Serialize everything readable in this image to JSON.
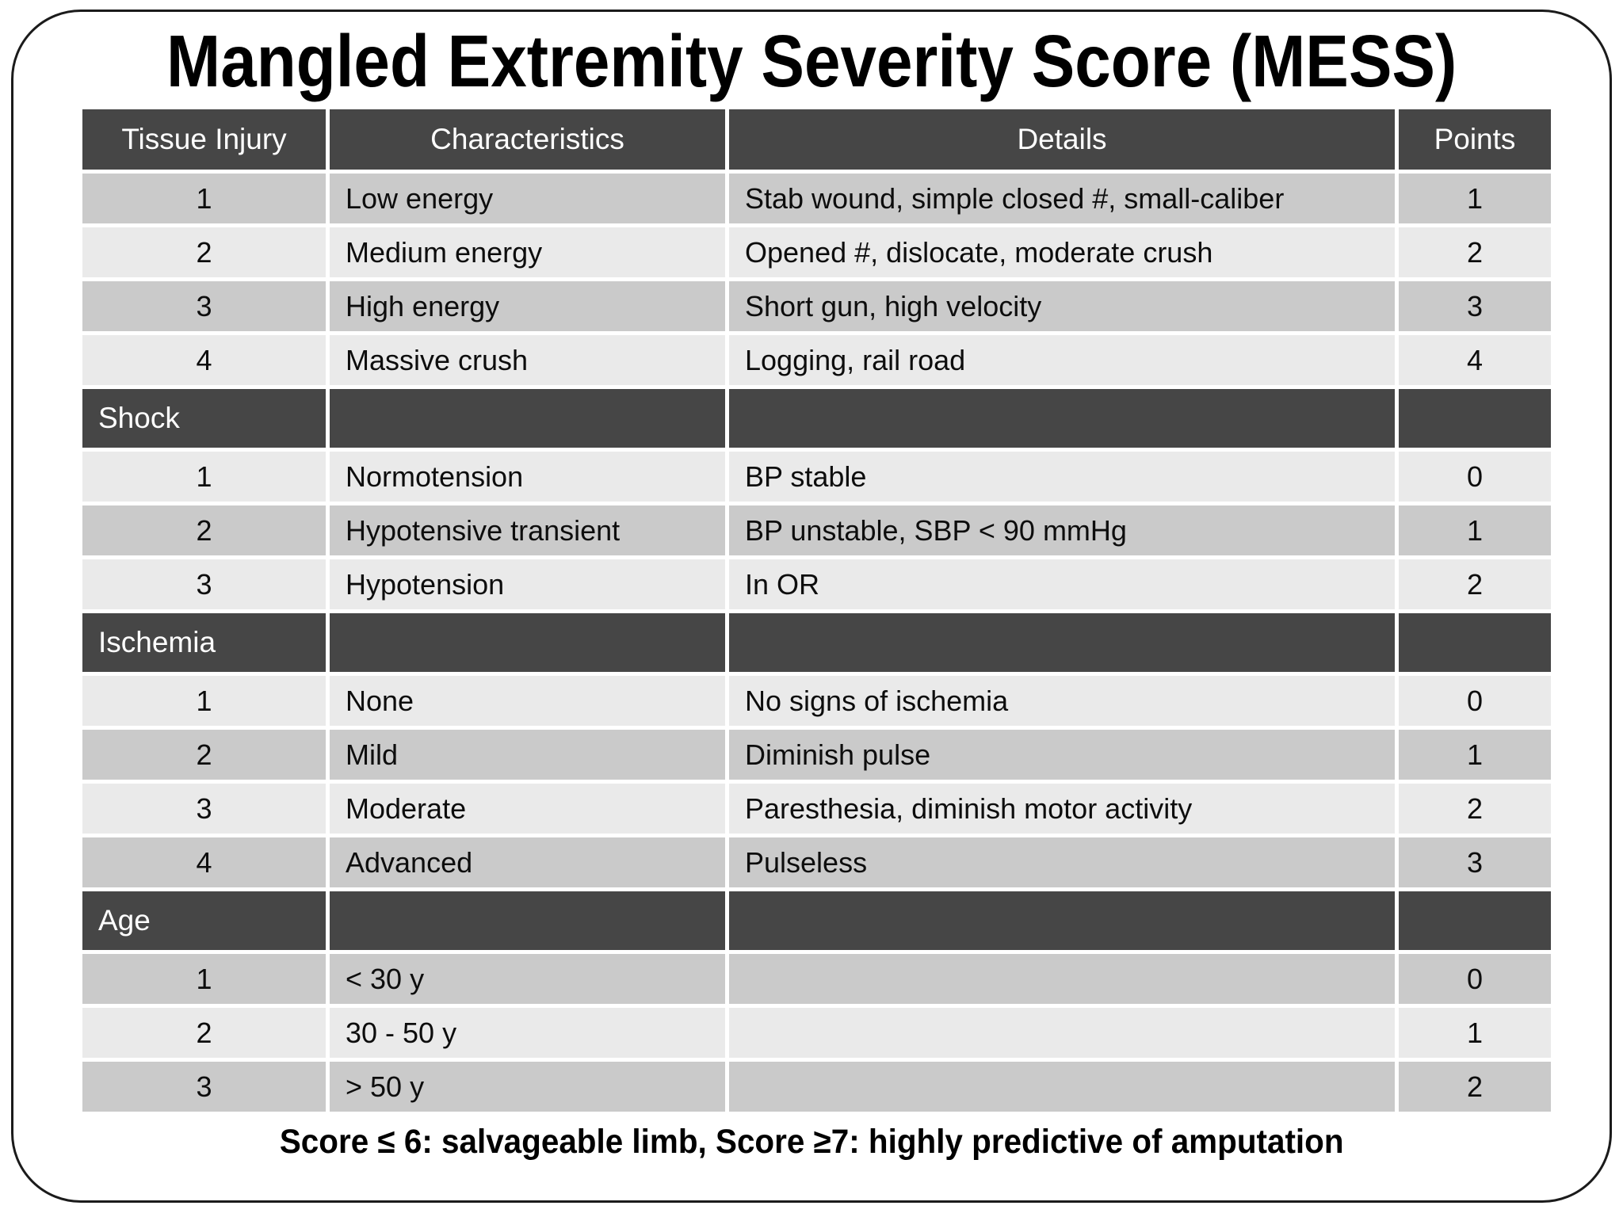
{
  "page": {
    "title": "Mangled Extremity Severity Score (MESS)",
    "footer": "Score ≤ 6: salvageable limb, Score ≥7: highly predictive of amputation"
  },
  "colors": {
    "header_bg": "#464646",
    "header_text": "#ffffff",
    "row_medium": "#cacaca",
    "row_light": "#eaeaea",
    "body_text": "#0d0d0d",
    "frame_border": "#1b1b1b"
  },
  "table": {
    "columns": [
      "Tissue Injury",
      "Characteristics",
      "Details",
      "Points"
    ],
    "sections": [
      {
        "name": null,
        "rows": [
          {
            "num": "1",
            "characteristic": "Low energy",
            "detail": "Stab wound, simple closed #, small-caliber",
            "points": "1"
          },
          {
            "num": "2",
            "characteristic": "Medium energy",
            "detail": "Opened #, dislocate, moderate crush",
            "points": "2"
          },
          {
            "num": "3",
            "characteristic": "High energy",
            "detail": "Short gun, high velocity",
            "points": "3"
          },
          {
            "num": "4",
            "characteristic": "Massive crush",
            "detail": "Logging, rail road",
            "points": "4"
          }
        ]
      },
      {
        "name": "Shock",
        "rows": [
          {
            "num": "1",
            "characteristic": "Normotension",
            "detail": "BP stable",
            "points": "0"
          },
          {
            "num": "2",
            "characteristic": "Hypotensive transient",
            "detail": "BP unstable, SBP < 90 mmHg",
            "points": "1"
          },
          {
            "num": "3",
            "characteristic": "Hypotension",
            "detail": "In OR",
            "points": "2"
          }
        ]
      },
      {
        "name": "Ischemia",
        "rows": [
          {
            "num": "1",
            "characteristic": "None",
            "detail": "No signs of ischemia",
            "points": "0"
          },
          {
            "num": "2",
            "characteristic": "Mild",
            "detail": "Diminish pulse",
            "points": "1"
          },
          {
            "num": "3",
            "characteristic": "Moderate",
            "detail": "Paresthesia, diminish motor activity",
            "points": "2"
          },
          {
            "num": "4",
            "characteristic": "Advanced",
            "detail": "Pulseless",
            "points": "3"
          }
        ]
      },
      {
        "name": "Age",
        "rows": [
          {
            "num": "1",
            "characteristic": "< 30 y",
            "detail": "",
            "points": "0"
          },
          {
            "num": "2",
            "characteristic": "30 - 50 y",
            "detail": "",
            "points": "1"
          },
          {
            "num": "3",
            "characteristic": "> 50 y",
            "detail": "",
            "points": "2"
          }
        ]
      }
    ]
  }
}
